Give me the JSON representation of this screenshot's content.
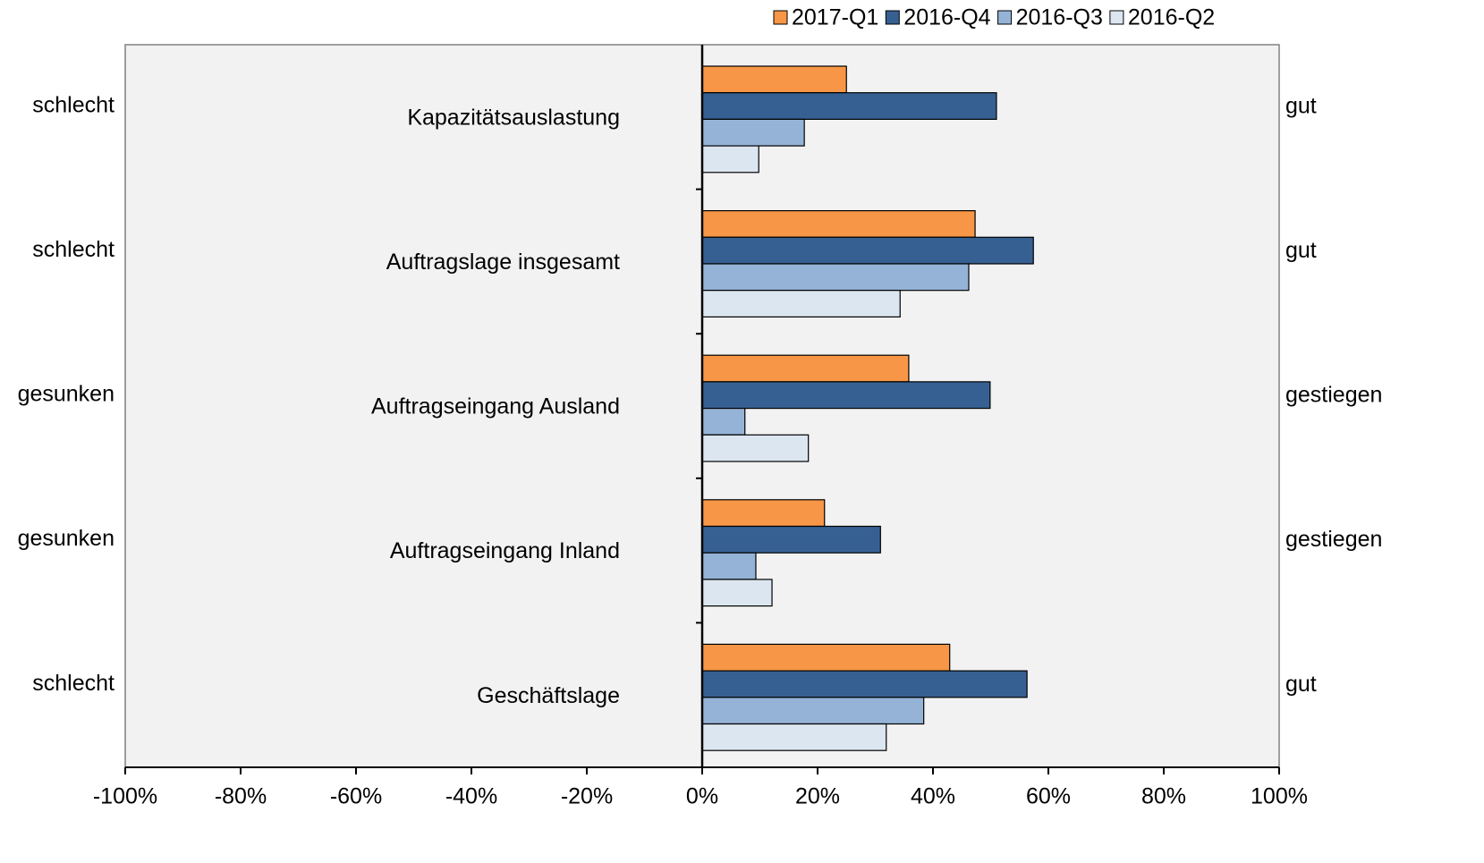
{
  "chart_data": {
    "type": "bar",
    "orientation": "horizontal",
    "categories": [
      "Kapazitätsauslastung",
      "Auftragslage insgesamt",
      "Auftragseingang Ausland",
      "Auftragseingang Inland",
      "Geschäftslage"
    ],
    "left_labels": [
      "schlecht",
      "schlecht",
      "gesunken",
      "gesunken",
      "schlecht"
    ],
    "right_labels": [
      "gut",
      "gut",
      "gestiegen",
      "gestiegen",
      "gut"
    ],
    "series": [
      {
        "name": "2017-Q1",
        "color": "#f79646",
        "values": [
          25,
          47.3,
          35.8,
          21.2,
          42.9
        ]
      },
      {
        "name": "2016-Q4",
        "color": "#366092",
        "values": [
          51,
          57.4,
          49.9,
          30.9,
          56.3
        ]
      },
      {
        "name": "2016-Q3",
        "color": "#95b3d7",
        "values": [
          17.7,
          46.2,
          7.4,
          9.3,
          38.4
        ]
      },
      {
        "name": "2016-Q2",
        "color": "#dce6f1",
        "values": [
          9.8,
          34.3,
          18.4,
          12.1,
          31.9
        ]
      }
    ],
    "xlim": [
      -100,
      100
    ],
    "xticks": [
      {
        "value": -100,
        "label": "-100%"
      },
      {
        "value": -80,
        "label": "-80%"
      },
      {
        "value": -60,
        "label": "-60%"
      },
      {
        "value": -40,
        "label": "-40%"
      },
      {
        "value": -20,
        "label": "-20%"
      },
      {
        "value": 0,
        "label": "0%"
      },
      {
        "value": 20,
        "label": "20%"
      },
      {
        "value": 40,
        "label": "40%"
      },
      {
        "value": 60,
        "label": "60%"
      },
      {
        "value": 80,
        "label": "80%"
      },
      {
        "value": 100,
        "label": "100%"
      }
    ],
    "legend": "top"
  }
}
